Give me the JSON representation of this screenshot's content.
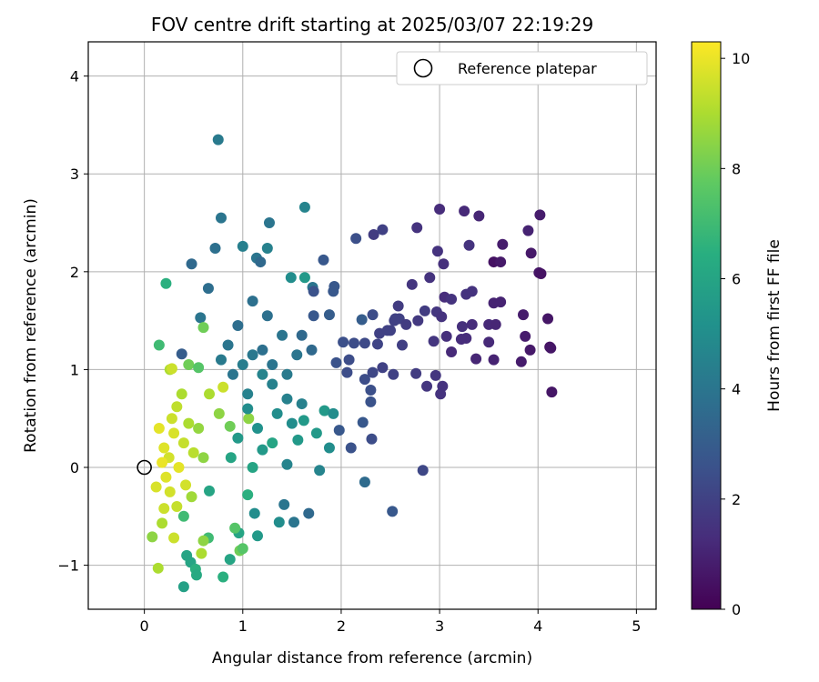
{
  "chart_data": {
    "type": "scatter",
    "title": "FOV centre drift starting at 2025/03/07 22:19:29",
    "xlabel": "Angular distance from reference (arcmin)",
    "ylabel": "Rotation from reference (arcmin)",
    "xlim": [
      -0.57,
      5.2
    ],
    "ylim": [
      -1.45,
      4.35
    ],
    "xticks": [
      0,
      1,
      2,
      3,
      4,
      5
    ],
    "yticks": [
      -1,
      0,
      1,
      2,
      3,
      4
    ],
    "grid": true,
    "legend": {
      "placement": "top-right",
      "label": "Reference platepar"
    },
    "reference_point": {
      "x": 0,
      "y": 0
    },
    "colorbar": {
      "label": "Hours from first FF file",
      "min": 0,
      "max": 10.3,
      "ticks": [
        0,
        2,
        4,
        6,
        8,
        10
      ],
      "colormap": "viridis"
    },
    "series": [
      {
        "points": [
          [
            0.75,
            3.35,
            4.2
          ],
          [
            0.78,
            2.55,
            4.0
          ],
          [
            0.72,
            2.24,
            3.8
          ],
          [
            1.63,
            2.66,
            4.6
          ],
          [
            1.27,
            2.5,
            4.0
          ],
          [
            1.0,
            2.26,
            4.4
          ],
          [
            1.25,
            2.24,
            4.5
          ],
          [
            1.14,
            2.14,
            4.0
          ],
          [
            0.48,
            2.08,
            3.5
          ],
          [
            1.18,
            2.1,
            3.5
          ],
          [
            0.65,
            1.83,
            3.7
          ],
          [
            1.49,
            1.94,
            5.0
          ],
          [
            1.63,
            1.94,
            5.5
          ],
          [
            1.71,
            1.84,
            4.0
          ],
          [
            0.22,
            1.88,
            6.5
          ],
          [
            0.15,
            1.25,
            7.0
          ],
          [
            0.57,
            1.53,
            4.0
          ],
          [
            0.38,
            1.16,
            3.0
          ],
          [
            0.6,
            1.43,
            8.0
          ],
          [
            2.15,
            2.34,
            2.5
          ],
          [
            2.33,
            2.38,
            1.8
          ],
          [
            2.42,
            2.43,
            2.0
          ],
          [
            1.82,
            2.12,
            2.8
          ],
          [
            1.92,
            1.8,
            2.8
          ],
          [
            2.21,
            1.51,
            3.0
          ],
          [
            2.32,
            1.56,
            2.4
          ],
          [
            2.77,
            2.45,
            1.5
          ],
          [
            3.0,
            2.64,
            1.3
          ],
          [
            3.25,
            2.62,
            1.2
          ],
          [
            3.4,
            2.57,
            1.1
          ],
          [
            2.98,
            2.21,
            1.5
          ],
          [
            3.3,
            2.27,
            1.5
          ],
          [
            3.64,
            2.28,
            0.8
          ],
          [
            3.9,
            2.42,
            1.0
          ],
          [
            4.02,
            2.58,
            0.8
          ],
          [
            3.93,
            2.19,
            0.7
          ],
          [
            3.55,
            2.1,
            0.5
          ],
          [
            3.62,
            2.1,
            0.7
          ],
          [
            4.01,
            1.99,
            0.6
          ],
          [
            4.03,
            1.98,
            0.5
          ],
          [
            3.55,
            1.68,
            1.0
          ],
          [
            3.62,
            1.69,
            1.0
          ],
          [
            3.04,
            2.08,
            1.4
          ],
          [
            3.27,
            1.77,
            1.5
          ],
          [
            3.33,
            1.8,
            1.5
          ],
          [
            3.05,
            1.74,
            1.3
          ],
          [
            3.12,
            1.72,
            1.5
          ],
          [
            2.9,
            1.94,
            1.5
          ],
          [
            2.72,
            1.87,
            1.6
          ],
          [
            2.58,
            1.65,
            1.8
          ],
          [
            2.85,
            1.6,
            1.8
          ],
          [
            2.97,
            1.59,
            1.6
          ],
          [
            3.02,
            1.54,
            1.5
          ],
          [
            2.78,
            1.5,
            1.7
          ],
          [
            2.59,
            1.52,
            2.0
          ],
          [
            2.66,
            1.46,
            1.8
          ],
          [
            2.5,
            1.4,
            2.0
          ],
          [
            3.23,
            1.44,
            1.4
          ],
          [
            3.33,
            1.46,
            1.3
          ],
          [
            3.5,
            1.46,
            1.2
          ],
          [
            3.57,
            1.46,
            1.1
          ],
          [
            3.27,
            1.32,
            1.3
          ],
          [
            3.5,
            1.28,
            1.2
          ],
          [
            3.07,
            1.34,
            1.4
          ],
          [
            3.22,
            1.31,
            1.3
          ],
          [
            3.12,
            1.18,
            1.2
          ],
          [
            3.37,
            1.11,
            1.1
          ],
          [
            3.55,
            1.1,
            1.0
          ],
          [
            3.85,
            1.56,
            0.8
          ],
          [
            4.1,
            1.52,
            0.6
          ],
          [
            3.87,
            1.34,
            0.8
          ],
          [
            3.92,
            1.2,
            0.7
          ],
          [
            3.83,
            1.08,
            0.8
          ],
          [
            4.12,
            1.23,
            0.5
          ],
          [
            4.13,
            1.22,
            0.6
          ],
          [
            4.14,
            0.77,
            0.6
          ],
          [
            2.94,
            1.29,
            1.6
          ],
          [
            2.96,
            0.94,
            1.6
          ],
          [
            2.76,
            0.96,
            1.8
          ],
          [
            2.87,
            0.83,
            1.6
          ],
          [
            3.03,
            0.83,
            1.5
          ],
          [
            3.01,
            0.75,
            1.5
          ],
          [
            2.53,
            0.95,
            2.0
          ],
          [
            2.42,
            1.02,
            2.0
          ],
          [
            2.32,
            0.97,
            2.2
          ],
          [
            2.06,
            0.97,
            2.4
          ],
          [
            2.08,
            1.1,
            2.4
          ],
          [
            2.24,
            0.9,
            2.4
          ],
          [
            2.24,
            1.27,
            2.3
          ],
          [
            2.37,
            1.26,
            2.1
          ],
          [
            2.39,
            1.37,
            2.0
          ],
          [
            2.47,
            1.4,
            2.0
          ],
          [
            2.55,
            1.52,
            2.0
          ],
          [
            2.62,
            1.25,
            1.9
          ],
          [
            2.54,
            1.5,
            2.0
          ],
          [
            2.3,
            0.79,
            2.5
          ],
          [
            2.3,
            0.67,
            2.6
          ],
          [
            2.22,
            0.46,
            2.8
          ],
          [
            2.31,
            0.29,
            2.4
          ],
          [
            2.24,
            -0.15,
            3.6
          ],
          [
            2.52,
            -0.45,
            2.8
          ],
          [
            2.83,
            -0.03,
            2.2
          ],
          [
            2.1,
            0.2,
            2.6
          ],
          [
            1.98,
            0.38,
            2.8
          ],
          [
            1.95,
            1.07,
            2.6
          ],
          [
            2.02,
            1.28,
            2.5
          ],
          [
            2.13,
            1.27,
            2.4
          ],
          [
            1.72,
            1.55,
            2.8
          ],
          [
            1.72,
            1.8,
            2.6
          ],
          [
            1.93,
            1.85,
            2.8
          ],
          [
            1.88,
            1.56,
            3.0
          ],
          [
            1.67,
            -0.47,
            3.5
          ],
          [
            1.52,
            -0.56,
            4.0
          ],
          [
            1.42,
            -0.38,
            4.0
          ],
          [
            1.37,
            -0.56,
            5.0
          ],
          [
            1.15,
            -0.7,
            5.5
          ],
          [
            1.12,
            -0.47,
            5.0
          ],
          [
            0.96,
            -0.67,
            6.0
          ],
          [
            0.87,
            -0.94,
            6.0
          ],
          [
            0.8,
            -1.12,
            6.5
          ],
          [
            0.65,
            -0.72,
            7.0
          ],
          [
            0.47,
            -0.97,
            6.0
          ],
          [
            0.43,
            -0.9,
            6.0
          ],
          [
            0.52,
            -1.04,
            6.5
          ],
          [
            0.53,
            -1.1,
            6.2
          ],
          [
            0.4,
            -1.22,
            5.8
          ],
          [
            0.97,
            -0.85,
            8.0
          ],
          [
            1.0,
            -0.83,
            7.5
          ],
          [
            0.92,
            -0.62,
            7.5
          ],
          [
            1.05,
            -0.28,
            6.5
          ],
          [
            1.1,
            0.0,
            6.0
          ],
          [
            1.2,
            0.18,
            5.5
          ],
          [
            1.3,
            0.25,
            6.0
          ],
          [
            0.14,
            -1.03,
            9.0
          ],
          [
            0.08,
            -0.71,
            8.5
          ],
          [
            0.18,
            -0.57,
            9.0
          ],
          [
            0.3,
            -0.72,
            9.5
          ],
          [
            0.58,
            -0.88,
            9.0
          ],
          [
            0.6,
            -0.75,
            8.5
          ],
          [
            0.2,
            -0.42,
            9.5
          ],
          [
            0.26,
            1.0,
            9.0
          ],
          [
            0.45,
            1.05,
            8.0
          ],
          [
            0.55,
            1.02,
            7.5
          ],
          [
            0.28,
            1.01,
            9.5
          ],
          [
            1.75,
            0.35,
            5.5
          ],
          [
            1.62,
            0.48,
            5.5
          ],
          [
            1.83,
            0.58,
            5.5
          ],
          [
            1.92,
            0.55,
            5.0
          ],
          [
            1.88,
            0.2,
            5.0
          ],
          [
            1.78,
            -0.03,
            4.6
          ],
          [
            1.45,
            0.03,
            4.6
          ],
          [
            1.56,
            0.28,
            5.5
          ],
          [
            0.87,
            0.42,
            8.0
          ],
          [
            0.76,
            0.55,
            8.5
          ],
          [
            0.66,
            0.75,
            9.0
          ],
          [
            1.06,
            0.5,
            8.5
          ],
          [
            0.8,
            0.82,
            9.5
          ],
          [
            0.66,
            -0.24,
            6.0
          ],
          [
            0.4,
            -0.5,
            7.0
          ],
          [
            1.6,
            0.65,
            4.5
          ],
          [
            1.45,
            0.7,
            4.5
          ],
          [
            1.3,
            0.85,
            4.5
          ],
          [
            1.2,
            0.95,
            4.6
          ],
          [
            1.05,
            0.75,
            4.5
          ],
          [
            1.55,
            1.15,
            4.0
          ],
          [
            1.4,
            1.35,
            4.0
          ],
          [
            1.25,
            1.55,
            3.8
          ],
          [
            1.1,
            1.7,
            3.8
          ],
          [
            0.95,
            1.45,
            3.7
          ],
          [
            0.85,
            1.25,
            4.0
          ],
          [
            0.9,
            0.95,
            4.0
          ],
          [
            1.2,
            1.2,
            3.8
          ],
          [
            1.3,
            1.05,
            4.0
          ],
          [
            1.45,
            0.95,
            4.2
          ],
          [
            1.0,
            1.05,
            4.3
          ],
          [
            1.6,
            1.35,
            3.5
          ],
          [
            1.7,
            1.2,
            3.5
          ],
          [
            1.05,
            0.6,
            5.0
          ],
          [
            0.95,
            0.3,
            5.5
          ],
          [
            0.88,
            0.1,
            6.0
          ],
          [
            1.15,
            0.4,
            5.2
          ],
          [
            1.35,
            0.55,
            5.0
          ],
          [
            0.78,
            1.1,
            4.2
          ],
          [
            1.1,
            1.15,
            4.1
          ],
          [
            1.5,
            0.45,
            5.0
          ],
          [
            0.2,
            0.2,
            9.8
          ],
          [
            0.25,
            0.1,
            9.6
          ],
          [
            0.3,
            0.35,
            9.7
          ],
          [
            0.35,
            0.0,
            9.9
          ],
          [
            0.4,
            0.25,
            9.4
          ],
          [
            0.22,
            -0.1,
            9.8
          ],
          [
            0.28,
            0.5,
            9.5
          ],
          [
            0.33,
            0.62,
            9.3
          ],
          [
            0.15,
            0.4,
            9.9
          ],
          [
            0.42,
            -0.18,
            9.6
          ],
          [
            0.5,
            0.15,
            9.2
          ],
          [
            0.45,
            0.45,
            9.0
          ],
          [
            0.18,
            0.05,
            10.0
          ],
          [
            0.26,
            -0.25,
            9.6
          ],
          [
            0.38,
            0.75,
            9.0
          ],
          [
            0.12,
            -0.2,
            9.7
          ],
          [
            0.55,
            0.4,
            8.6
          ],
          [
            0.6,
            0.1,
            8.5
          ],
          [
            0.48,
            -0.3,
            8.8
          ],
          [
            0.33,
            -0.4,
            9.4
          ]
        ]
      }
    ]
  }
}
